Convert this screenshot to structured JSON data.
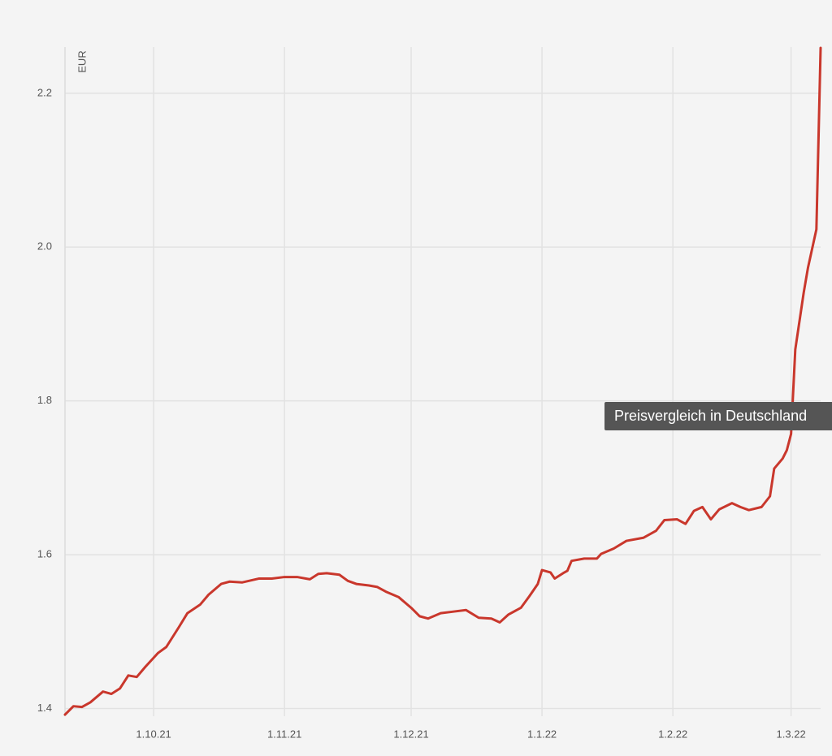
{
  "chart_data": {
    "type": "line",
    "y_label": "EUR",
    "tooltip": "Preisvergleich in Deutschland",
    "color": "#c9372c",
    "grid": true,
    "x": [
      "2021-09-10",
      "2021-09-12",
      "2021-09-14",
      "2021-09-16",
      "2021-09-19",
      "2021-09-21",
      "2021-09-23",
      "2021-09-25",
      "2021-09-27",
      "2021-09-29",
      "2021-10-02",
      "2021-10-04",
      "2021-10-07",
      "2021-10-09",
      "2021-10-12",
      "2021-10-14",
      "2021-10-17",
      "2021-10-19",
      "2021-10-22",
      "2021-10-26",
      "2021-10-29",
      "2021-11-01",
      "2021-11-04",
      "2021-11-07",
      "2021-11-09",
      "2021-11-11",
      "2021-11-14",
      "2021-11-16",
      "2021-11-18",
      "2021-11-21",
      "2021-11-23",
      "2021-11-25",
      "2021-11-28",
      "2021-12-01",
      "2021-12-03",
      "2021-12-05",
      "2021-12-08",
      "2021-12-11",
      "2021-12-14",
      "2021-12-17",
      "2021-12-20",
      "2021-12-22",
      "2021-12-24",
      "2021-12-27",
      "2021-12-29",
      "2021-12-31",
      "2022-01-01",
      "2022-01-03",
      "2022-01-04",
      "2022-01-06",
      "2022-01-07",
      "2022-01-08",
      "2022-01-11",
      "2022-01-14",
      "2022-01-15",
      "2022-01-18",
      "2022-01-21",
      "2022-01-25",
      "2022-01-28",
      "2022-01-30",
      "2022-02-02",
      "2022-02-04",
      "2022-02-06",
      "2022-02-08",
      "2022-02-10",
      "2022-02-12",
      "2022-02-15",
      "2022-02-17",
      "2022-02-19",
      "2022-02-22",
      "2022-02-24",
      "2022-02-25",
      "2022-02-27",
      "2022-02-28",
      "2022-03-01",
      "2022-03-02",
      "2022-03-04",
      "2022-03-05",
      "2022-03-07",
      "2022-03-08"
    ],
    "values": [
      1.392,
      1.403,
      1.402,
      1.408,
      1.422,
      1.419,
      1.426,
      1.443,
      1.441,
      1.454,
      1.472,
      1.48,
      1.506,
      1.524,
      1.535,
      1.548,
      1.562,
      1.565,
      1.564,
      1.569,
      1.569,
      1.571,
      1.571,
      1.568,
      1.575,
      1.576,
      1.574,
      1.566,
      1.562,
      1.56,
      1.558,
      1.552,
      1.545,
      1.531,
      1.52,
      1.517,
      1.524,
      1.526,
      1.528,
      1.518,
      1.517,
      1.512,
      1.522,
      1.531,
      1.546,
      1.562,
      1.58,
      1.577,
      1.569,
      1.576,
      1.579,
      1.592,
      1.595,
      1.595,
      1.601,
      1.608,
      1.618,
      1.622,
      1.631,
      1.645,
      1.646,
      1.64,
      1.657,
      1.662,
      1.646,
      1.659,
      1.667,
      1.662,
      1.658,
      1.662,
      1.676,
      1.712,
      1.725,
      1.736,
      1.757,
      1.867,
      1.941,
      1.973,
      2.023,
      2.259
    ],
    "xlim": [
      "2021-09-10",
      "2022-03-08"
    ],
    "xticks": [
      {
        "value": "2021-10-01",
        "label": "1.10.21"
      },
      {
        "value": "2021-11-01",
        "label": "1.11.21"
      },
      {
        "value": "2021-12-01",
        "label": "1.12.21"
      },
      {
        "value": "2022-01-01",
        "label": "1.1.22"
      },
      {
        "value": "2022-02-01",
        "label": "1.2.22"
      },
      {
        "value": "2022-03-01",
        "label": "1.3.22"
      }
    ],
    "ylim": [
      1.39,
      2.26
    ],
    "yticks": [
      1.4,
      1.6,
      1.8,
      {
        "value": 2,
        "label": "2.0"
      },
      2.2
    ]
  }
}
